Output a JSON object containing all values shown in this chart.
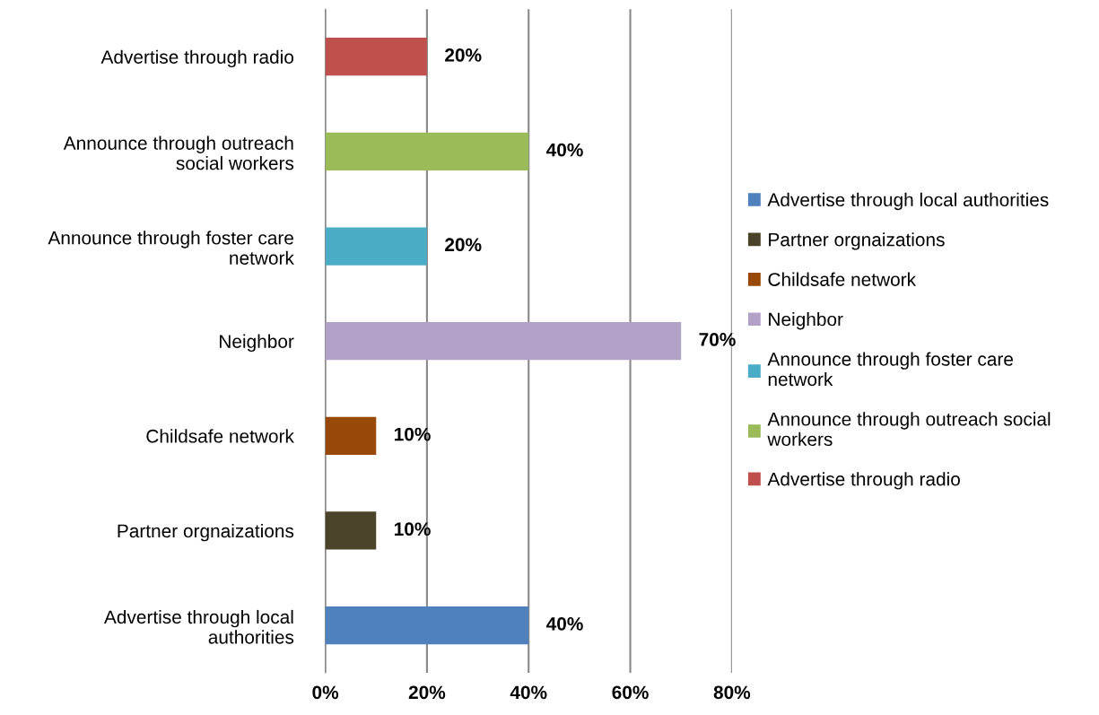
{
  "chart_data": {
    "type": "bar",
    "orientation": "horizontal",
    "categories": [
      "Advertise through radio",
      "Announce through outreach\nsocial workers",
      "Announce through foster care\nnetwork",
      "Neighbor",
      "Childsafe network",
      "Partner orgnaizations",
      "Advertise through local\nauthorities"
    ],
    "series": [
      {
        "name": "Advertise through local authorities",
        "color": "#4f81bd",
        "values": [
          null,
          null,
          null,
          null,
          null,
          null,
          40
        ],
        "value_labels": [
          null,
          null,
          null,
          null,
          null,
          null,
          "40%"
        ]
      },
      {
        "name": "Partner orgnaizations",
        "color": "#4a452a",
        "values": [
          null,
          null,
          null,
          null,
          null,
          10,
          null
        ],
        "value_labels": [
          null,
          null,
          null,
          null,
          null,
          "10%",
          null
        ]
      },
      {
        "name": "Childsafe network",
        "color": "#984807",
        "values": [
          null,
          null,
          null,
          null,
          10,
          null,
          null
        ],
        "value_labels": [
          null,
          null,
          null,
          null,
          "10%",
          null,
          null
        ]
      },
      {
        "name": "Neighbor",
        "color": "#b3a2c7",
        "values": [
          null,
          null,
          null,
          70,
          null,
          null,
          null
        ],
        "value_labels": [
          null,
          null,
          null,
          "70%",
          null,
          null,
          null
        ]
      },
      {
        "name": "Announce through foster care\nnetwork",
        "color": "#4bacc6",
        "values": [
          null,
          null,
          20,
          null,
          null,
          null,
          null
        ],
        "value_labels": [
          null,
          null,
          "20%",
          null,
          null,
          null,
          null
        ]
      },
      {
        "name": "Announce through outreach social\nworkers",
        "color": "#9bbb59",
        "values": [
          null,
          40,
          null,
          null,
          null,
          null,
          null
        ],
        "value_labels": [
          null,
          "40%",
          null,
          null,
          null,
          null,
          null
        ]
      },
      {
        "name": "Advertise through radio",
        "color": "#c0504d",
        "values": [
          20,
          null,
          null,
          null,
          null,
          null,
          null
        ],
        "value_labels": [
          "20%",
          null,
          null,
          null,
          null,
          null,
          null
        ]
      }
    ],
    "xlim": [
      0,
      80
    ],
    "xticks": [
      {
        "value": 0,
        "label": "0%"
      },
      {
        "value": 20,
        "label": "20%"
      },
      {
        "value": 40,
        "label": "40%"
      },
      {
        "value": 60,
        "label": "60%"
      },
      {
        "value": 80,
        "label": "80%"
      }
    ],
    "grid": "x",
    "legend": "right"
  }
}
